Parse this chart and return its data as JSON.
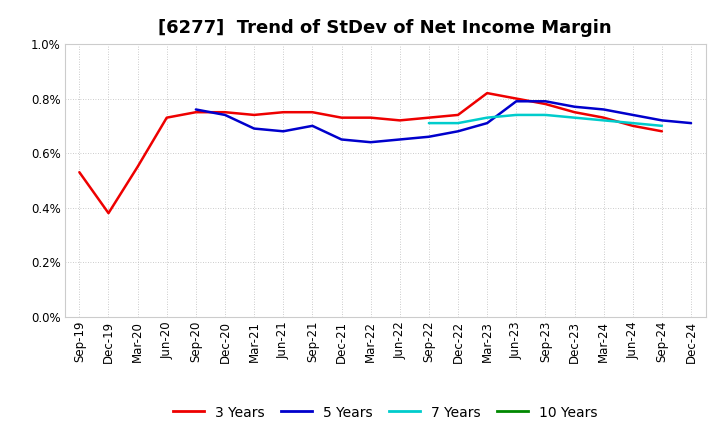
{
  "title": "[6277]  Trend of StDev of Net Income Margin",
  "ylim": [
    0.0,
    0.01
  ],
  "yticks": [
    0.0,
    0.002,
    0.004,
    0.006,
    0.008,
    0.01
  ],
  "ytick_labels": [
    "0.0%",
    "0.2%",
    "0.4%",
    "0.6%",
    "0.8%",
    "1.0%"
  ],
  "x_labels": [
    "Sep-19",
    "Dec-19",
    "Mar-20",
    "Jun-20",
    "Sep-20",
    "Dec-20",
    "Mar-21",
    "Jun-21",
    "Sep-21",
    "Dec-21",
    "Mar-22",
    "Jun-22",
    "Sep-22",
    "Dec-22",
    "Mar-23",
    "Jun-23",
    "Sep-23",
    "Dec-23",
    "Mar-24",
    "Jun-24",
    "Sep-24",
    "Dec-24"
  ],
  "series": {
    "3 Years": {
      "color": "#EE0000",
      "values": [
        0.0053,
        0.0038,
        0.0055,
        0.0073,
        0.0075,
        0.0075,
        0.0074,
        0.0075,
        0.0075,
        0.0073,
        0.0073,
        0.0072,
        0.0073,
        0.0074,
        0.0082,
        0.008,
        0.0078,
        0.0075,
        0.0073,
        0.007,
        0.0068,
        null
      ]
    },
    "5 Years": {
      "color": "#0000CC",
      "values": [
        null,
        null,
        null,
        null,
        0.0076,
        0.0074,
        0.0069,
        0.0068,
        0.007,
        0.0065,
        0.0064,
        0.0065,
        0.0066,
        0.0068,
        0.0071,
        0.0079,
        0.0079,
        0.0077,
        0.0076,
        0.0074,
        0.0072,
        0.0071
      ]
    },
    "7 Years": {
      "color": "#00CCCC",
      "values": [
        null,
        null,
        null,
        null,
        null,
        null,
        null,
        null,
        null,
        null,
        null,
        null,
        0.0071,
        0.0071,
        0.0073,
        0.0074,
        0.0074,
        0.0073,
        0.0072,
        0.0071,
        0.007,
        null
      ]
    },
    "10 Years": {
      "color": "#008800",
      "values": [
        null,
        null,
        null,
        null,
        null,
        null,
        null,
        null,
        null,
        null,
        null,
        null,
        null,
        null,
        null,
        null,
        null,
        null,
        null,
        null,
        null,
        null
      ]
    }
  },
  "legend_order": [
    "3 Years",
    "5 Years",
    "7 Years",
    "10 Years"
  ],
  "background_color": "#FFFFFF",
  "plot_bg_color": "#FFFFFF",
  "grid_color": "#BBBBBB",
  "title_fontsize": 13,
  "tick_fontsize": 8.5,
  "legend_fontsize": 10
}
